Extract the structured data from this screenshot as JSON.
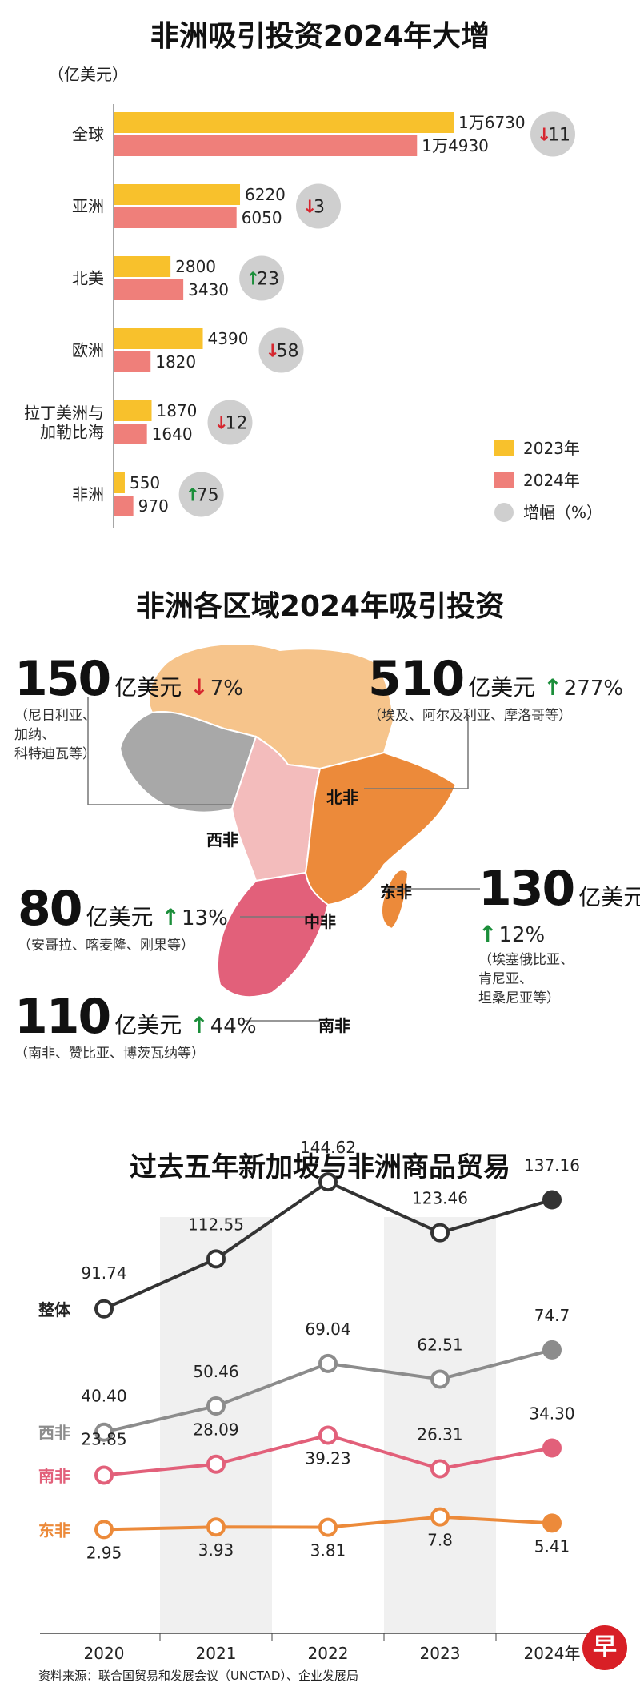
{
  "section1": {
    "title": "非洲吸引投资2024年大增",
    "unit_label": "（亿美元）",
    "colors": {
      "y2023": "#f8c12c",
      "y2024": "#ef7f7a",
      "circle": "#cfcfcf",
      "up": "#1b8e3a",
      "down": "#d6262f"
    },
    "legend": [
      {
        "label": "2023年",
        "key": "y2023"
      },
      {
        "label": "2024年",
        "key": "y2024"
      },
      {
        "label": "增幅（%）",
        "key": "circle"
      }
    ],
    "chart_data": {
      "type": "bar",
      "categories": [
        "全球",
        "亚洲",
        "北美",
        "欧洲",
        "拉丁美洲与加勒比海",
        "非洲"
      ],
      "category_lines": [
        [
          "全球"
        ],
        [
          "亚洲"
        ],
        [
          "北美"
        ],
        [
          "欧洲"
        ],
        [
          "拉丁美洲与",
          "加勒比海"
        ],
        [
          "非洲"
        ]
      ],
      "series": [
        {
          "name": "2023年",
          "values": [
            16730,
            6220,
            2800,
            4390,
            1870,
            550
          ],
          "labels": [
            "1万6730",
            "6220",
            "2800",
            "4390",
            "1870",
            "550"
          ]
        },
        {
          "name": "2024年",
          "values": [
            14930,
            6050,
            3430,
            1820,
            1640,
            970
          ],
          "labels": [
            "1万4930",
            "6050",
            "3430",
            "1820",
            "1640",
            "970"
          ]
        }
      ],
      "change_pct": [
        {
          "value": "11",
          "direction": "down"
        },
        {
          "value": "3",
          "direction": "down"
        },
        {
          "value": "23",
          "direction": "up"
        },
        {
          "value": "58",
          "direction": "down"
        },
        {
          "value": "12",
          "direction": "down"
        },
        {
          "value": "75",
          "direction": "up"
        }
      ],
      "ylabel": "（亿美元）"
    }
  },
  "section2": {
    "title": "非洲各区域2024年吸引投资",
    "unit": "亿美元",
    "regions": {
      "west": {
        "label": "西非",
        "value": "150",
        "arrow": "↓",
        "pct": "7%",
        "note": [
          "（尼日利亚、",
          "加纳、",
          "科特迪瓦等）"
        ]
      },
      "north": {
        "label": "北非",
        "value": "510",
        "arrow": "↑",
        "pct": "277%",
        "note": [
          "（埃及、阿尔及利亚、摩洛哥等）"
        ]
      },
      "central": {
        "label": "中非",
        "value": "80",
        "arrow": "↑",
        "pct": "13%",
        "note": [
          "（安哥拉、喀麦隆、刚果等）"
        ]
      },
      "east": {
        "label": "东非",
        "value": "130",
        "arrow": "↑",
        "pct": "12%",
        "note": [
          "（埃塞俄比亚、",
          "肯尼亚、",
          "坦桑尼亚等）"
        ]
      },
      "south": {
        "label": "南非",
        "value": "110",
        "arrow": "↑",
        "pct": "44%",
        "note": [
          "（南非、赞比亚、博茨瓦纳等）"
        ]
      }
    },
    "map_colors": {
      "north": "#f6c48b",
      "west": "#a8a8a8",
      "central": "#f3bcbc",
      "east": "#ec8a3a",
      "south": "#e2607a"
    }
  },
  "section3": {
    "title": "过去五年新加坡与非洲商品贸易",
    "chart_data": {
      "type": "line",
      "x": [
        "2020",
        "2021",
        "2022",
        "2023",
        "2024年"
      ],
      "series": [
        {
          "name": "整体",
          "color": "#333333",
          "values": [
            91.74,
            112.55,
            144.62,
            123.46,
            137.16
          ],
          "labels": [
            "91.74",
            "112.55",
            "144.62",
            "123.46",
            "137.16"
          ]
        },
        {
          "name": "西非",
          "color": "#8c8c8c",
          "values": [
            40.4,
            50.46,
            69.04,
            62.51,
            74.7
          ],
          "labels": [
            "40.40",
            "50.46",
            "69.04",
            "62.51",
            "74.7"
          ]
        },
        {
          "name": "南非",
          "color": "#e2607a",
          "values": [
            23.85,
            28.09,
            39.23,
            26.31,
            34.3
          ],
          "labels": [
            "23.85",
            "28.09",
            "39.23",
            "26.31",
            "34.30"
          ]
        },
        {
          "name": "东非",
          "color": "#ec8a3a",
          "values": [
            2.95,
            3.93,
            3.81,
            7.8,
            5.41
          ],
          "labels": [
            "2.95",
            "3.93",
            "3.81",
            "7.8",
            "5.41"
          ]
        }
      ],
      "shaded_columns": [
        "2021",
        "2023"
      ],
      "grid": false
    },
    "source": "资料来源：联合国贸易和发展会议（UNCTAD）、企业发展局",
    "logo_char": "早"
  }
}
